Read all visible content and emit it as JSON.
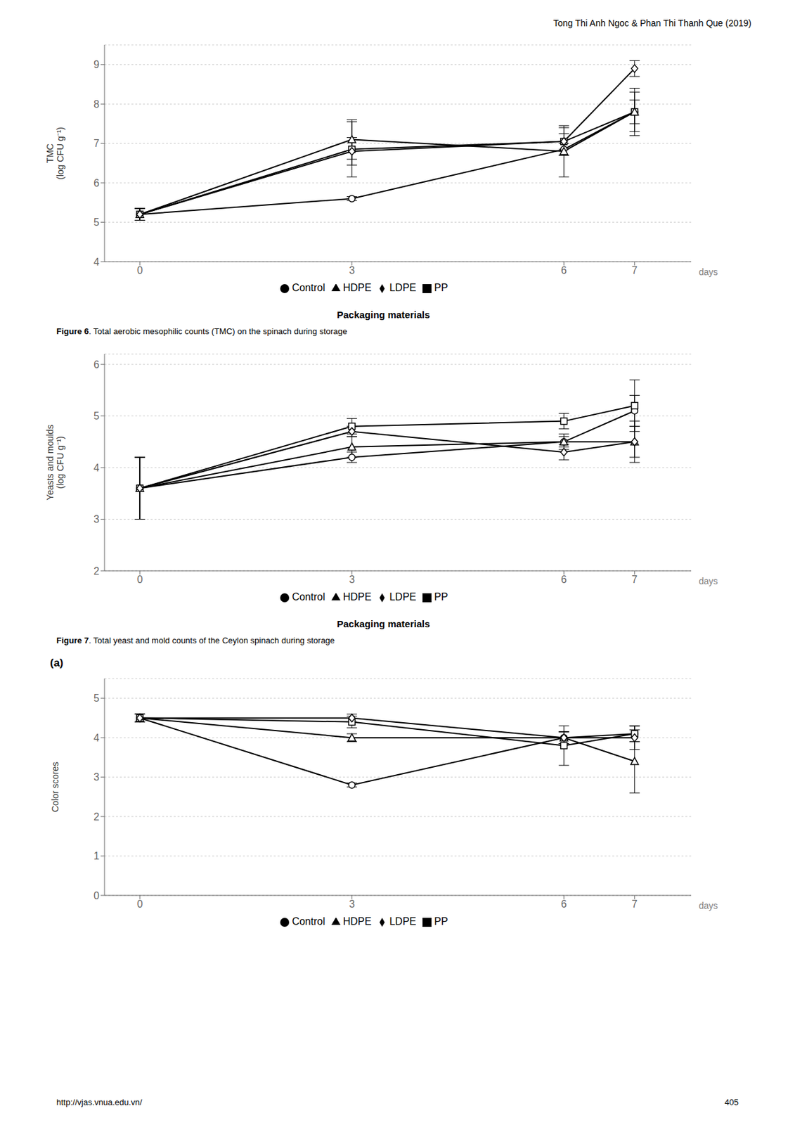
{
  "header": "Tong Thi Anh Ngoc & Phan Thi Thanh Que (2019)",
  "footer": [
    "http://vjas.vnua.edu.vn/",
    "405"
  ],
  "chart_data": [
    {
      "type": "line",
      "ylabel": "TMC\n(log CFU g⁻¹)",
      "xlabel": "Packaging materials",
      "annotations": [
        "days"
      ],
      "caption": [
        "Figure 6",
        ". Total aerobic mesophilic counts (TMC) on the spinach during storage"
      ],
      "x": [
        0,
        3,
        6,
        7
      ],
      "xlim": [
        -0.5,
        7.8
      ],
      "xticks": [
        0,
        3,
        6,
        7
      ],
      "ylim": [
        4,
        9.5
      ],
      "yticks": [
        4,
        5,
        6,
        7,
        8,
        9
      ],
      "grid": true,
      "legend": "bottom",
      "series": [
        {
          "name": "Control",
          "color": "#000000",
          "marker": "circle",
          "values": [
            5.2,
            5.6,
            6.85,
            7.8
          ],
          "yerr": [
            0.15,
            0.05,
            0.15,
            0.5
          ]
        },
        {
          "name": "PP",
          "color": "#000000",
          "marker": "square",
          "values": [
            5.2,
            6.85,
            7.05,
            7.8
          ],
          "yerr": [
            0.15,
            0.7,
            0.35,
            0.6
          ]
        },
        {
          "name": "HDPE",
          "color": "#000000",
          "marker": "triangle",
          "values": [
            5.2,
            7.1,
            6.8,
            7.8
          ],
          "yerr": [
            0.15,
            0.5,
            0.65,
            0.3
          ]
        },
        {
          "name": "LDPE",
          "color": "#000000",
          "marker": "diamond",
          "values": [
            5.2,
            6.8,
            7.05,
            8.9
          ],
          "yerr": [
            0.15,
            0.35,
            0.2,
            0.2
          ]
        }
      ]
    },
    {
      "type": "line",
      "ylabel": "Yeasts and moulds\n(log CFU g⁻¹)",
      "xlabel": "Packaging materials",
      "annotations": [
        "days"
      ],
      "caption": [
        "Figure 7",
        ". Total yeast and mold counts of the Ceylon spinach during storage"
      ],
      "x": [
        0,
        3,
        6,
        7
      ],
      "xlim": [
        -0.5,
        7.8
      ],
      "xticks": [
        0,
        3,
        6,
        7
      ],
      "ylim": [
        2,
        6.2
      ],
      "yticks": [
        2,
        3,
        4,
        5,
        6
      ],
      "grid": true,
      "legend": "bottom",
      "series": [
        {
          "name": "Control",
          "color": "#000000",
          "marker": "circle",
          "values": [
            3.6,
            4.2,
            4.5,
            5.1
          ],
          "yerr": [
            0.6,
            0.1,
            0.15,
            0.3
          ]
        },
        {
          "name": "PP",
          "color": "#000000",
          "marker": "square",
          "values": [
            3.6,
            4.8,
            4.9,
            5.2
          ],
          "yerr": [
            0.6,
            0.15,
            0.15,
            0.5
          ]
        },
        {
          "name": "HDPE",
          "color": "#000000",
          "marker": "triangle",
          "values": [
            3.6,
            4.4,
            4.5,
            4.5
          ],
          "yerr": [
            0.6,
            0.2,
            0.1,
            0.4
          ]
        },
        {
          "name": "LDPE",
          "color": "#000000",
          "marker": "diamond",
          "values": [
            3.6,
            4.7,
            4.3,
            4.5
          ],
          "yerr": [
            0.6,
            0.1,
            0.15,
            0.3
          ]
        }
      ]
    },
    {
      "type": "line",
      "panel_label": "(a)",
      "ylabel": "Color scores",
      "annotations": [
        "days"
      ],
      "x": [
        0,
        3,
        6,
        7
      ],
      "xlim": [
        -0.5,
        7.8
      ],
      "xticks": [
        0,
        3,
        6,
        7
      ],
      "ylim": [
        0,
        5.5
      ],
      "yticks": [
        0,
        1,
        2,
        3,
        4,
        5
      ],
      "grid": true,
      "legend": "bottom",
      "series": [
        {
          "name": "Control",
          "color": "#000000",
          "marker": "circle",
          "values": [
            4.5,
            2.8,
            4.0,
            4.1
          ],
          "yerr": [
            0.1,
            0.05,
            0.15,
            0.2
          ]
        },
        {
          "name": "PP",
          "color": "#000000",
          "marker": "square",
          "values": [
            4.5,
            4.4,
            3.8,
            4.1
          ],
          "yerr": [
            0.1,
            0.15,
            0.5,
            0.2
          ]
        },
        {
          "name": "HDPE",
          "color": "#000000",
          "marker": "triangle",
          "values": [
            4.5,
            4.0,
            4.0,
            3.4
          ],
          "yerr": [
            0.1,
            0.1,
            0.15,
            0.8
          ]
        },
        {
          "name": "LDPE",
          "color": "#000000",
          "marker": "diamond",
          "values": [
            4.5,
            4.5,
            4.0,
            4.0
          ],
          "yerr": [
            0.1,
            0.1,
            0.15,
            0.3
          ]
        }
      ]
    }
  ]
}
